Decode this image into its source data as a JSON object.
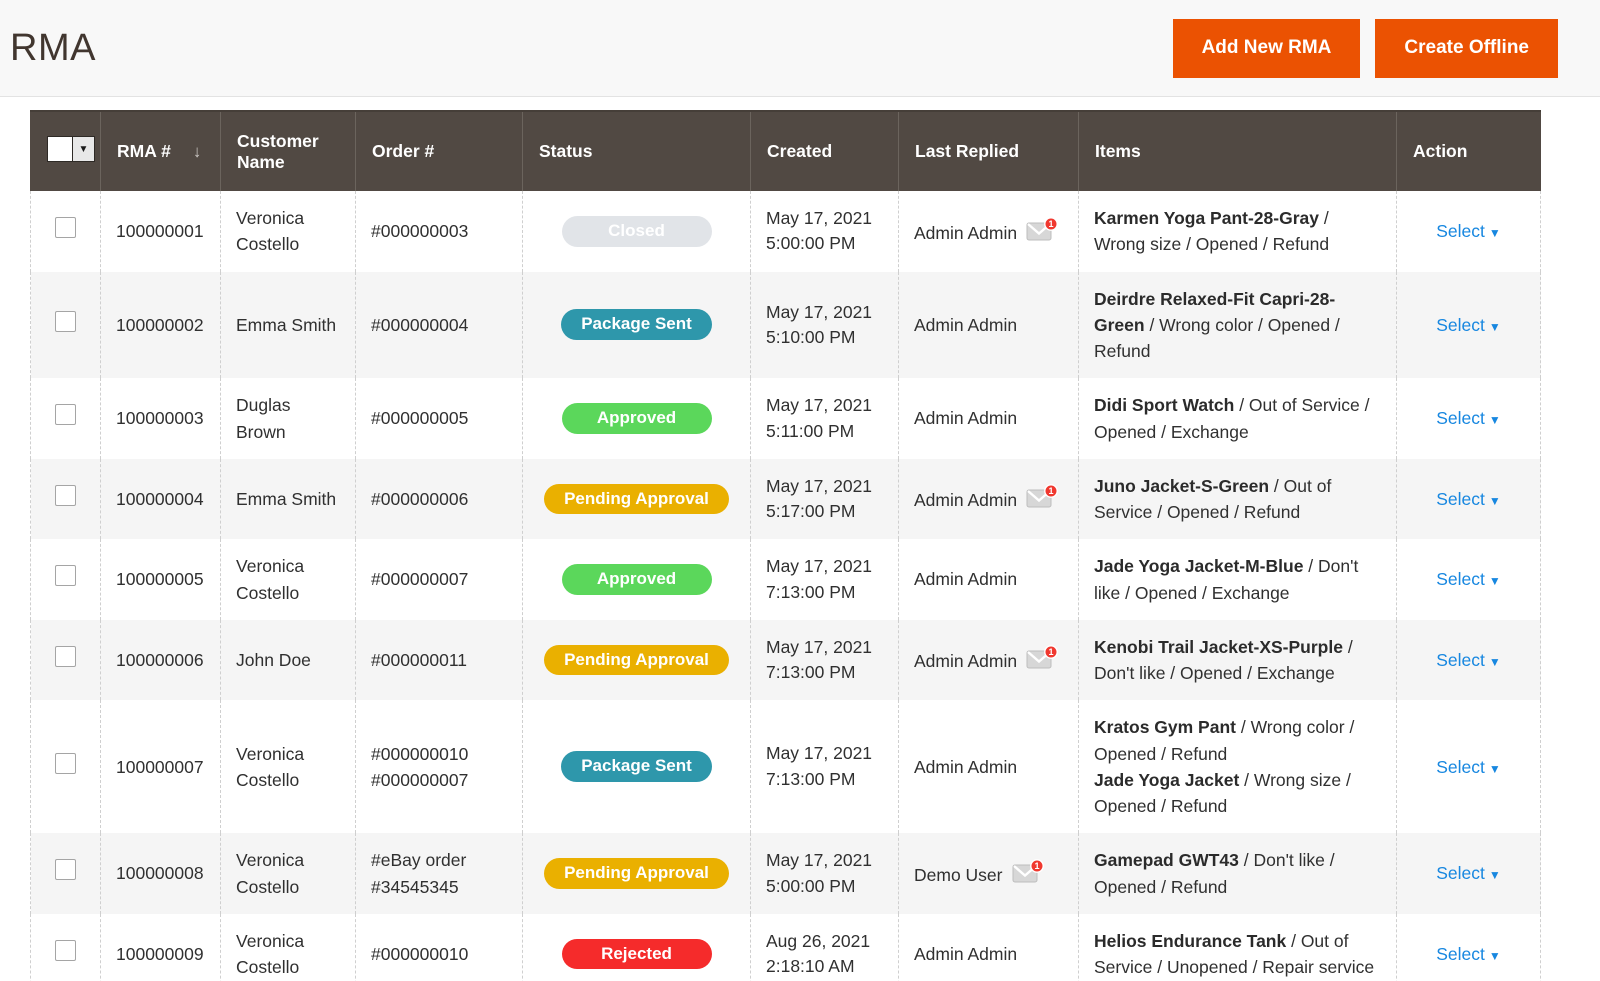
{
  "page": {
    "title": "RMA"
  },
  "toolbar": {
    "add_new_rma": "Add New RMA",
    "create_offline": "Create Offline",
    "button_color": "#eb5202"
  },
  "table": {
    "columns": {
      "rma": "RMA #",
      "customer": "Customer Name",
      "order": "Order #",
      "status": "Status",
      "created": "Created",
      "last_replied": "Last Replied",
      "items": "Items",
      "action": "Action"
    },
    "sort_icon": "↓",
    "select_label": "Select",
    "select_caret": "▼",
    "notification_count": "1",
    "status_colors": {
      "Closed": "#e1e4e8",
      "Package Sent": "#2e97ab",
      "Approved": "#5bd75b",
      "Pending Approval": "#eab000",
      "Rejected": "#f52b2b"
    },
    "rows": [
      {
        "rma": "100000001",
        "customer": "Veronica Costello",
        "orders": [
          "#000000003"
        ],
        "status": "Closed",
        "created_date": "May 17, 2021",
        "created_time": "5:00:00 PM",
        "last_replied": "Admin Admin",
        "notification": true,
        "items": [
          {
            "name": "Karmen Yoga Pant-28-Gray",
            "reasons": "Wrong size / Opened / Refund"
          }
        ]
      },
      {
        "rma": "100000002",
        "customer": "Emma Smith",
        "orders": [
          "#000000004"
        ],
        "status": "Package Sent",
        "created_date": "May 17, 2021",
        "created_time": "5:10:00 PM",
        "last_replied": "Admin Admin",
        "notification": false,
        "items": [
          {
            "name": "Deirdre Relaxed-Fit Capri-28-Green",
            "reasons": "Wrong color / Opened / Refund"
          }
        ]
      },
      {
        "rma": "100000003",
        "customer": "Duglas Brown",
        "orders": [
          "#000000005"
        ],
        "status": "Approved",
        "created_date": "May 17, 2021",
        "created_time": "5:11:00 PM",
        "last_replied": "Admin Admin",
        "notification": false,
        "items": [
          {
            "name": "Didi Sport Watch",
            "reasons": "Out of Service / Opened / Exchange"
          }
        ]
      },
      {
        "rma": "100000004",
        "customer": "Emma Smith",
        "orders": [
          "#000000006"
        ],
        "status": "Pending Approval",
        "created_date": "May 17, 2021",
        "created_time": "5:17:00 PM",
        "last_replied": "Admin Admin",
        "notification": true,
        "items": [
          {
            "name": "Juno Jacket-S-Green",
            "reasons": "Out of Service / Opened / Refund"
          }
        ]
      },
      {
        "rma": "100000005",
        "customer": "Veronica Costello",
        "orders": [
          "#000000007"
        ],
        "status": "Approved",
        "created_date": "May 17, 2021",
        "created_time": "7:13:00 PM",
        "last_replied": "Admin Admin",
        "notification": false,
        "items": [
          {
            "name": "Jade Yoga Jacket-M-Blue",
            "reasons": "Don't like / Opened / Exchange"
          }
        ]
      },
      {
        "rma": "100000006",
        "customer": "John Doe",
        "orders": [
          "#000000011"
        ],
        "status": "Pending Approval",
        "created_date": "May 17, 2021",
        "created_time": "7:13:00 PM",
        "last_replied": "Admin Admin",
        "notification": true,
        "items": [
          {
            "name": "Kenobi Trail Jacket-XS-Purple",
            "reasons": "Don't like / Opened / Exchange"
          }
        ]
      },
      {
        "rma": "100000007",
        "customer": "Veronica Costello",
        "orders": [
          "#000000010",
          "#000000007"
        ],
        "status": "Package Sent",
        "created_date": "May 17, 2021",
        "created_time": "7:13:00 PM",
        "last_replied": "Admin Admin",
        "notification": false,
        "items": [
          {
            "name": "Kratos Gym Pant",
            "reasons": "Wrong color / Opened / Refund"
          },
          {
            "name": "Jade Yoga Jacket",
            "reasons": "Wrong size / Opened / Refund"
          }
        ]
      },
      {
        "rma": "100000008",
        "customer": "Veronica Costello",
        "orders": [
          "#eBay order #34545345"
        ],
        "status": "Pending Approval",
        "created_date": "May 17, 2021",
        "created_time": "5:00:00 PM",
        "last_replied": "Demo User",
        "notification": true,
        "items": [
          {
            "name": "Gamepad GWT43",
            "reasons": "Don't like / Opened / Refund"
          }
        ]
      },
      {
        "rma": "100000009",
        "customer": "Veronica Costello",
        "orders": [
          "#000000010"
        ],
        "status": "Rejected",
        "created_date": "Aug 26, 2021",
        "created_time": "2:18:10 AM",
        "last_replied": "Admin Admin",
        "notification": false,
        "items": [
          {
            "name": "Helios Endurance Tank",
            "reasons": "Out of Service / Unopened / Repair service"
          }
        ]
      }
    ]
  }
}
